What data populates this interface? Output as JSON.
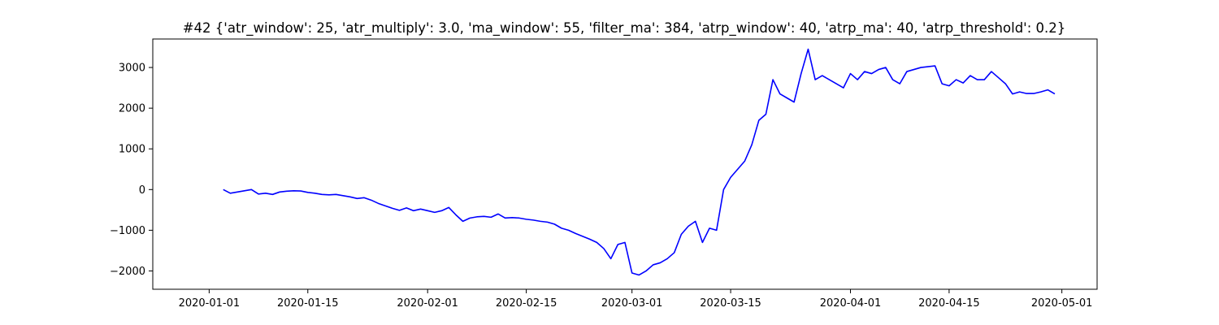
{
  "chart_data": {
    "type": "line",
    "title": "#42 {'atr_window': 25, 'atr_multiply': 3.0, 'ma_window': 55, 'filter_ma': 384, 'atrp_window': 40, 'atrp_ma': 40, 'atrp_threshold': 0.2}",
    "xlabel": "",
    "ylabel": "",
    "x_ticks": [
      "2020-01-01",
      "2020-01-15",
      "2020-02-01",
      "2020-02-15",
      "2020-03-01",
      "2020-03-15",
      "2020-04-01",
      "2020-04-15",
      "2020-05-01"
    ],
    "y_ticks": [
      "-2000",
      "-1000",
      "0",
      "1000",
      "2000",
      "3000"
    ],
    "xlim": [
      "2019-12-24",
      "2020-05-06"
    ],
    "ylim": [
      -2450,
      3700
    ],
    "grid": false,
    "color": "#0000ff",
    "series": [
      {
        "x": [
          "2020-01-03",
          "2020-01-04",
          "2020-01-05",
          "2020-01-06",
          "2020-01-07",
          "2020-01-08",
          "2020-01-09",
          "2020-01-10",
          "2020-01-11",
          "2020-01-12",
          "2020-01-13",
          "2020-01-14",
          "2020-01-15",
          "2020-01-16",
          "2020-01-17",
          "2020-01-18",
          "2020-01-19",
          "2020-01-20",
          "2020-01-21",
          "2020-01-22",
          "2020-01-23",
          "2020-01-24",
          "2020-01-25",
          "2020-01-26",
          "2020-01-27",
          "2020-01-28",
          "2020-01-29",
          "2020-01-30",
          "2020-01-31",
          "2020-02-01",
          "2020-02-02",
          "2020-02-03",
          "2020-02-04",
          "2020-02-05",
          "2020-02-06",
          "2020-02-07",
          "2020-02-08",
          "2020-02-09",
          "2020-02-10",
          "2020-02-11",
          "2020-02-12",
          "2020-02-13",
          "2020-02-14",
          "2020-02-15",
          "2020-02-16",
          "2020-02-17",
          "2020-02-18",
          "2020-02-19",
          "2020-02-20",
          "2020-02-21",
          "2020-02-22",
          "2020-02-23",
          "2020-02-24",
          "2020-02-25",
          "2020-02-26",
          "2020-02-27",
          "2020-02-28",
          "2020-02-29",
          "2020-03-01",
          "2020-03-02",
          "2020-03-03",
          "2020-03-04",
          "2020-03-05",
          "2020-03-06",
          "2020-03-07",
          "2020-03-08",
          "2020-03-09",
          "2020-03-10",
          "2020-03-11",
          "2020-03-12",
          "2020-03-13",
          "2020-03-14",
          "2020-03-15",
          "2020-03-16",
          "2020-03-17",
          "2020-03-18",
          "2020-03-19",
          "2020-03-20",
          "2020-03-21",
          "2020-03-22",
          "2020-03-23",
          "2020-03-24",
          "2020-03-25",
          "2020-03-26",
          "2020-03-27",
          "2020-03-28",
          "2020-03-29",
          "2020-03-30",
          "2020-03-31",
          "2020-04-01",
          "2020-04-02",
          "2020-04-03",
          "2020-04-04",
          "2020-04-05",
          "2020-04-06",
          "2020-04-07",
          "2020-04-08",
          "2020-04-09",
          "2020-04-10",
          "2020-04-11",
          "2020-04-12",
          "2020-04-13",
          "2020-04-14",
          "2020-04-15",
          "2020-04-16",
          "2020-04-17",
          "2020-04-18",
          "2020-04-19",
          "2020-04-20",
          "2020-04-21",
          "2020-04-22",
          "2020-04-23",
          "2020-04-24",
          "2020-04-25",
          "2020-04-26",
          "2020-04-27",
          "2020-04-28",
          "2020-04-29",
          "2020-04-30"
        ],
        "values": [
          0,
          -90,
          -60,
          -30,
          0,
          -110,
          -90,
          -120,
          -60,
          -40,
          -30,
          -35,
          -70,
          -90,
          -120,
          -130,
          -120,
          -150,
          -180,
          -220,
          -200,
          -260,
          -340,
          -400,
          -460,
          -510,
          -450,
          -520,
          -480,
          -520,
          -560,
          -520,
          -440,
          -620,
          -780,
          -700,
          -670,
          -660,
          -680,
          -600,
          -700,
          -690,
          -700,
          -730,
          -750,
          -780,
          -800,
          -850,
          -950,
          -1000,
          -1080,
          -1150,
          -1220,
          -1300,
          -1450,
          -1700,
          -1350,
          -1300,
          -2050,
          -2100,
          -2000,
          -1850,
          -1800,
          -1700,
          -1550,
          -1100,
          -900,
          -780,
          -1300,
          -950,
          -1000,
          0,
          300,
          500,
          700,
          1100,
          1700,
          1850,
          2700,
          2350,
          2250,
          2150,
          2850,
          3450,
          2700,
          2800,
          2700,
          2600,
          2500,
          2850,
          2700,
          2900,
          2850,
          2950,
          3000,
          2700,
          2600,
          2900,
          2950,
          3000,
          3020,
          3040,
          2600,
          2550,
          2700,
          2620,
          2800,
          2700,
          2700,
          2900,
          2750,
          2600,
          2350,
          2400,
          2360,
          2360,
          2400,
          2450,
          2350
        ]
      }
    ]
  }
}
